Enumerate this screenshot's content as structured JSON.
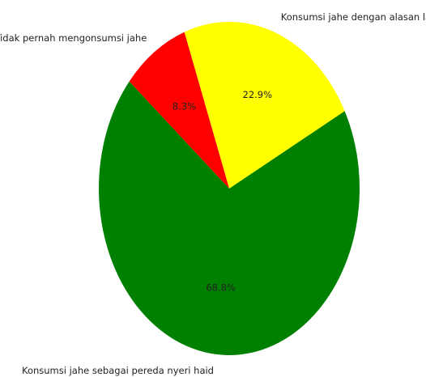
{
  "chart_data": {
    "type": "pie",
    "categories": [
      "Konsumsi jahe sebagai pereda nyeri haid",
      "Konsumsi jahe dengan alasan lain",
      "Tidak pernah mengonsumsi jahe"
    ],
    "values": [
      68.8,
      22.9,
      8.3
    ],
    "value_labels": [
      "68.8%",
      "22.9%",
      "8.3%"
    ],
    "colors": [
      "#008000",
      "#ffff00",
      "#ff0000"
    ],
    "startangle": 140
  }
}
